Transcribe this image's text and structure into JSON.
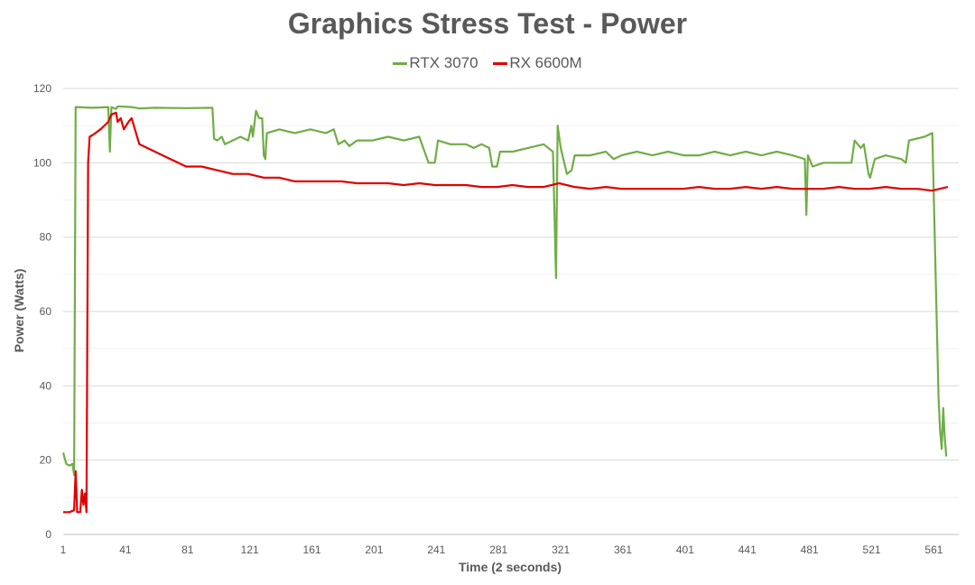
{
  "chart_data": {
    "type": "line",
    "title": "Graphics Stress Test - Power",
    "xlabel": "Time (2 seconds)",
    "ylabel": "Power (Watts)",
    "ylim": [
      0,
      120
    ],
    "y_ticks": [
      "0",
      "20",
      "40",
      "60",
      "80",
      "100",
      "120"
    ],
    "x_ticks": [
      "1",
      "41",
      "81",
      "121",
      "161",
      "201",
      "241",
      "281",
      "321",
      "361",
      "401",
      "441",
      "481",
      "521",
      "561"
    ],
    "xlim": [
      1,
      577
    ],
    "grid": true,
    "legend_position": "top",
    "series": [
      {
        "name": "RTX 3070",
        "color": "#70AD47",
        "points": [
          [
            1,
            22
          ],
          [
            3,
            19
          ],
          [
            5,
            18.5
          ],
          [
            7,
            19
          ],
          [
            8,
            16
          ],
          [
            9,
            115
          ],
          [
            20,
            114.8
          ],
          [
            30,
            115
          ],
          [
            31,
            103
          ],
          [
            32,
            115
          ],
          [
            35,
            114.5
          ],
          [
            36,
            115.2
          ],
          [
            45,
            115
          ],
          [
            50,
            114.6
          ],
          [
            60,
            114.8
          ],
          [
            80,
            114.7
          ],
          [
            97,
            114.8
          ],
          [
            98,
            106.5
          ],
          [
            100,
            106
          ],
          [
            103,
            107
          ],
          [
            105,
            105
          ],
          [
            110,
            106
          ],
          [
            115,
            107
          ],
          [
            120,
            106
          ],
          [
            122,
            110
          ],
          [
            123,
            107
          ],
          [
            125,
            114
          ],
          [
            127,
            112
          ],
          [
            129,
            112
          ],
          [
            130,
            102
          ],
          [
            131,
            101
          ],
          [
            132,
            108
          ],
          [
            140,
            109
          ],
          [
            150,
            108
          ],
          [
            160,
            109
          ],
          [
            170,
            108
          ],
          [
            175,
            109
          ],
          [
            178,
            105
          ],
          [
            182,
            106
          ],
          [
            185,
            104.5
          ],
          [
            190,
            106
          ],
          [
            200,
            106
          ],
          [
            210,
            107
          ],
          [
            220,
            106
          ],
          [
            230,
            107
          ],
          [
            236,
            100
          ],
          [
            240,
            100
          ],
          [
            242,
            106
          ],
          [
            250,
            105
          ],
          [
            260,
            105
          ],
          [
            265,
            104
          ],
          [
            270,
            105
          ],
          [
            275,
            104
          ],
          [
            277,
            99
          ],
          [
            280,
            99
          ],
          [
            282,
            103
          ],
          [
            290,
            103
          ],
          [
            300,
            104
          ],
          [
            310,
            105
          ],
          [
            316,
            103
          ],
          [
            318,
            69
          ],
          [
            319,
            110
          ],
          [
            321,
            104
          ],
          [
            325,
            97
          ],
          [
            328,
            98
          ],
          [
            330,
            102
          ],
          [
            340,
            102
          ],
          [
            350,
            103
          ],
          [
            355,
            101
          ],
          [
            360,
            102
          ],
          [
            370,
            103
          ],
          [
            380,
            102
          ],
          [
            390,
            103
          ],
          [
            400,
            102
          ],
          [
            410,
            102
          ],
          [
            420,
            103
          ],
          [
            430,
            102
          ],
          [
            440,
            103
          ],
          [
            450,
            102
          ],
          [
            460,
            103
          ],
          [
            470,
            102
          ],
          [
            478,
            101
          ],
          [
            479,
            86
          ],
          [
            480,
            102
          ],
          [
            483,
            99
          ],
          [
            490,
            100
          ],
          [
            500,
            100
          ],
          [
            508,
            100
          ],
          [
            510,
            106
          ],
          [
            514,
            104
          ],
          [
            516,
            105
          ],
          [
            519,
            97
          ],
          [
            520,
            96
          ],
          [
            523,
            101
          ],
          [
            530,
            102
          ],
          [
            540,
            101
          ],
          [
            543,
            100
          ],
          [
            545,
            106
          ],
          [
            555,
            107
          ],
          [
            560,
            108
          ],
          [
            564,
            37
          ],
          [
            565,
            28
          ],
          [
            566,
            23
          ],
          [
            567,
            34
          ],
          [
            568,
            26
          ],
          [
            569,
            21
          ]
        ]
      },
      {
        "name": "RX 6600M",
        "color": "#E00000",
        "points": [
          [
            1,
            6
          ],
          [
            5,
            6
          ],
          [
            8,
            6.5
          ],
          [
            9,
            17
          ],
          [
            10,
            6
          ],
          [
            12,
            6
          ],
          [
            13,
            12
          ],
          [
            14,
            8
          ],
          [
            15,
            11
          ],
          [
            16,
            6
          ],
          [
            17,
            100
          ],
          [
            18,
            107
          ],
          [
            20,
            107.5
          ],
          [
            25,
            109
          ],
          [
            30,
            111
          ],
          [
            32,
            113
          ],
          [
            35,
            113.5
          ],
          [
            36,
            111
          ],
          [
            38,
            112
          ],
          [
            40,
            109
          ],
          [
            43,
            111
          ],
          [
            45,
            112
          ],
          [
            50,
            105
          ],
          [
            55,
            104
          ],
          [
            60,
            103
          ],
          [
            65,
            102
          ],
          [
            70,
            101
          ],
          [
            75,
            100
          ],
          [
            80,
            99
          ],
          [
            90,
            99
          ],
          [
            100,
            98
          ],
          [
            110,
            97
          ],
          [
            120,
            97
          ],
          [
            130,
            96
          ],
          [
            140,
            96
          ],
          [
            150,
            95
          ],
          [
            160,
            95
          ],
          [
            170,
            95
          ],
          [
            180,
            95
          ],
          [
            190,
            94.5
          ],
          [
            200,
            94.5
          ],
          [
            210,
            94.5
          ],
          [
            220,
            94
          ],
          [
            230,
            94.5
          ],
          [
            240,
            94
          ],
          [
            250,
            94
          ],
          [
            260,
            94
          ],
          [
            270,
            93.5
          ],
          [
            280,
            93.5
          ],
          [
            290,
            94
          ],
          [
            300,
            93.5
          ],
          [
            310,
            93.5
          ],
          [
            320,
            94.5
          ],
          [
            330,
            93.5
          ],
          [
            340,
            93
          ],
          [
            350,
            93.5
          ],
          [
            360,
            93
          ],
          [
            370,
            93
          ],
          [
            380,
            93
          ],
          [
            390,
            93
          ],
          [
            400,
            93
          ],
          [
            410,
            93.5
          ],
          [
            420,
            93
          ],
          [
            430,
            93
          ],
          [
            440,
            93.5
          ],
          [
            450,
            93
          ],
          [
            460,
            93.5
          ],
          [
            470,
            93
          ],
          [
            480,
            93
          ],
          [
            490,
            93
          ],
          [
            500,
            93.5
          ],
          [
            510,
            93
          ],
          [
            520,
            93
          ],
          [
            530,
            93.5
          ],
          [
            540,
            93
          ],
          [
            550,
            93
          ],
          [
            560,
            92.5
          ],
          [
            565,
            93
          ],
          [
            570,
            93.5
          ]
        ]
      }
    ]
  }
}
